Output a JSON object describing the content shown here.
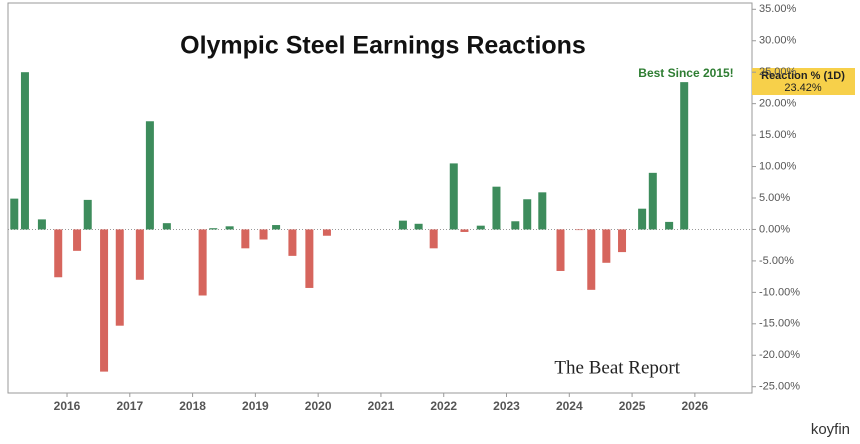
{
  "chart_data": {
    "type": "bar",
    "title": "Olympic Steel Earnings Reactions",
    "annotation": "Best Since 2015!",
    "watermarks": {
      "logo": "The Beat Report",
      "brand": "koyfin"
    },
    "x": [
      2015.16,
      2015.33,
      2015.6,
      2015.86,
      2016.16,
      2016.33,
      2016.59,
      2016.84,
      2017.16,
      2017.32,
      2017.59,
      2018.16,
      2018.33,
      2018.59,
      2018.84,
      2019.13,
      2019.33,
      2019.59,
      2019.86,
      2020.14,
      2021.35,
      2021.6,
      2021.84,
      2022.16,
      2022.33,
      2022.59,
      2022.84,
      2023.14,
      2023.33,
      2023.57,
      2023.86,
      2024.16,
      2024.35,
      2024.59,
      2024.84,
      2025.16,
      2025.33,
      2025.59,
      2025.83
    ],
    "series": [
      {
        "name": "Reaction % (1D)",
        "values": [
          4.9,
          25,
          1.6,
          -7.6,
          -3.4,
          4.7,
          -22.6,
          -15.3,
          -8.0,
          17.2,
          1.0,
          -10.5,
          0.2,
          0.5,
          -3.0,
          -1.6,
          0.7,
          -4.2,
          -9.3,
          -1.0,
          1.4,
          0.9,
          -3.0,
          10.5,
          -0.4,
          0.6,
          6.8,
          1.3,
          4.8,
          5.9,
          -6.6,
          -0.1,
          -9.6,
          -5.3,
          -3.6,
          3.3,
          9.0,
          1.2,
          23.42
        ],
        "value_labels": [
          null,
          null,
          null,
          null,
          null,
          null,
          null,
          null,
          null,
          null,
          null,
          null,
          null,
          null,
          null,
          null,
          null,
          null,
          null,
          null,
          null,
          null,
          null,
          null,
          null,
          null,
          null,
          null,
          null,
          null,
          null,
          null,
          null,
          null,
          null,
          null,
          null,
          null,
          "23.42%"
        ]
      }
    ],
    "positive_color": "#3d8c5c",
    "negative_color": "#d6655d",
    "xlim": [
      2015.06,
      2026.91
    ],
    "xticks": [
      2016,
      2017,
      2018,
      2019,
      2020,
      2021,
      2022,
      2023,
      2024,
      2025,
      2026
    ],
    "ylim": [
      -26,
      36
    ],
    "yticks": [
      {
        "value": 35,
        "label": "35.00%"
      },
      {
        "value": 30,
        "label": "30.00%"
      },
      {
        "value": 25,
        "label": "25.00%"
      },
      {
        "value": 20,
        "label": "20.00%"
      },
      {
        "value": 15,
        "label": "15.00%"
      },
      {
        "value": 10,
        "label": "10.00%"
      },
      {
        "value": 5,
        "label": "5.00%"
      },
      {
        "value": 0,
        "label": "0.00%"
      },
      {
        "value": -5,
        "label": "-5.00%"
      },
      {
        "value": -10,
        "label": "-10.00%"
      },
      {
        "value": -15,
        "label": "-15.00%"
      },
      {
        "value": -20,
        "label": "-20.00%"
      },
      {
        "value": -25,
        "label": "-25.00%"
      }
    ]
  }
}
